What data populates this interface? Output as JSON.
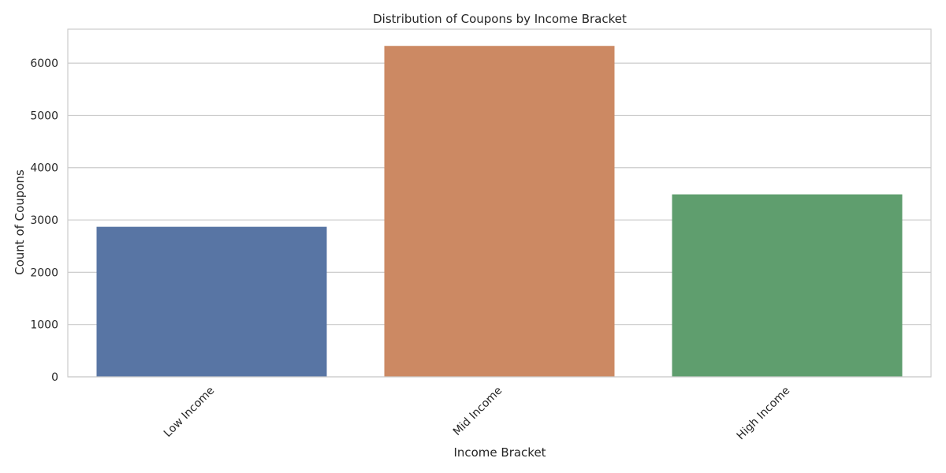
{
  "chart_data": {
    "type": "bar",
    "title": "Distribution of Coupons by Income Bracket",
    "xlabel": "Income Bracket",
    "ylabel": "Count of Coupons",
    "categories": [
      "Low Income",
      "Mid Income",
      "High Income"
    ],
    "values": [
      2870,
      6330,
      3490
    ],
    "colors": [
      "#5875a4",
      "#cc8963",
      "#5f9e6e"
    ],
    "ylim": [
      0,
      6650
    ],
    "yticks": [
      0,
      1000,
      2000,
      3000,
      4000,
      5000,
      6000
    ],
    "grid": true,
    "legend": "none",
    "xtick_rotation": 45
  }
}
